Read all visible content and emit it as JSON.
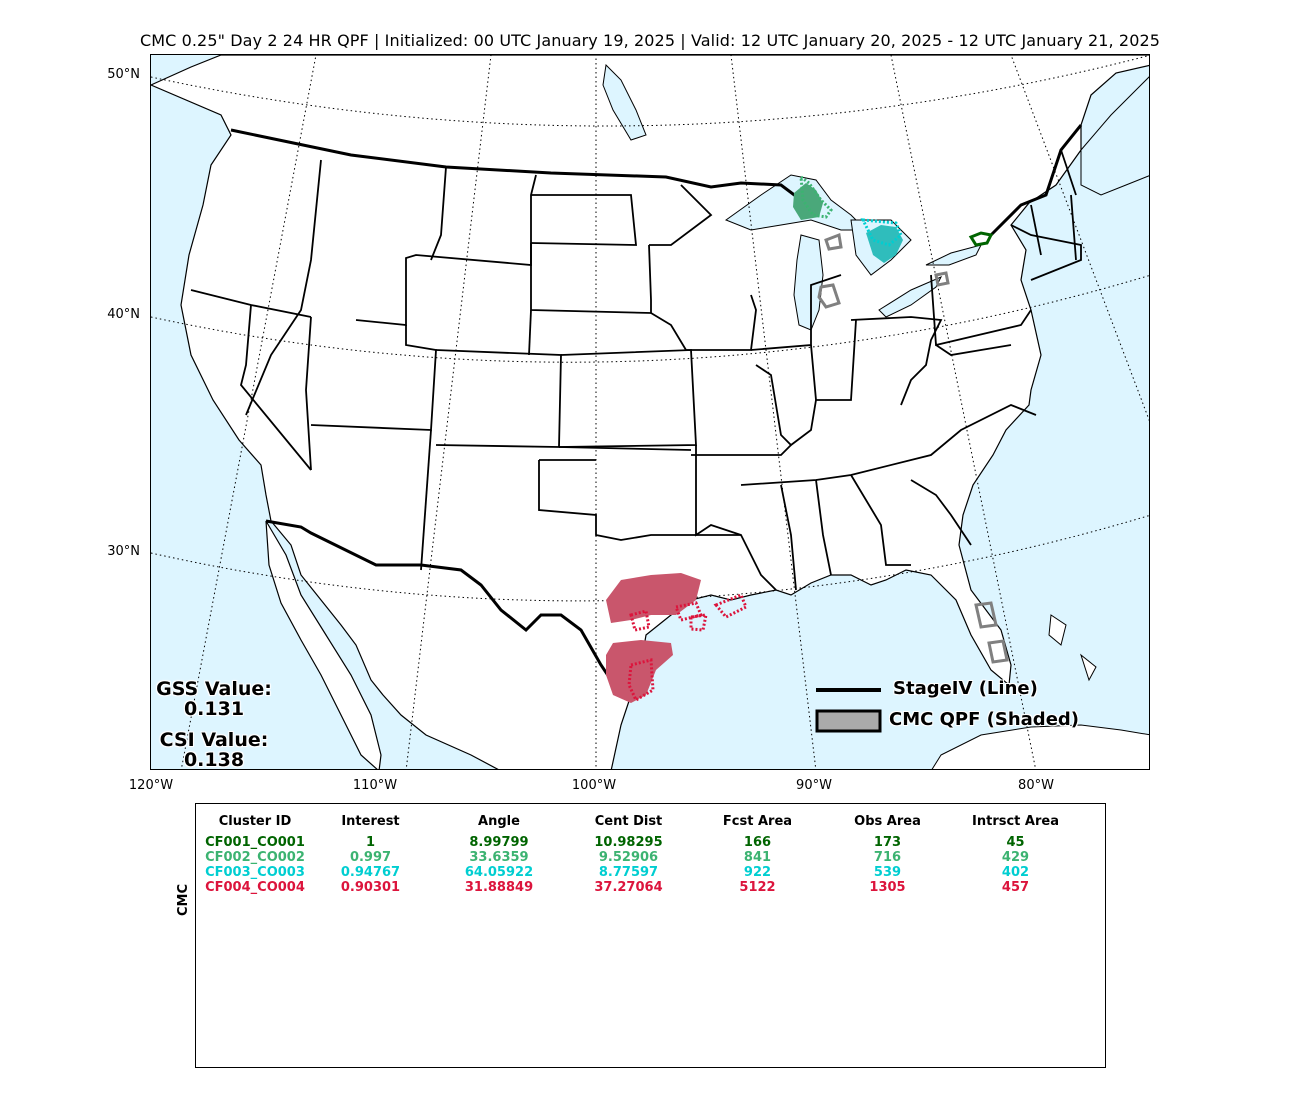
{
  "title": "CMC 0.25\" Day 2 24 HR QPF | Initialized: 00 UTC January 19, 2025 | Valid: 12 UTC January 20, 2025 - 12 UTC January 21, 2025",
  "map": {
    "lat_labels": [
      "50°N",
      "40°N",
      "30°N"
    ],
    "lon_labels": [
      "120°W",
      "110°W",
      "100°W",
      "90°W",
      "80°W"
    ],
    "colors": {
      "ocean": "#ddf5ff",
      "land": "#ffffff",
      "obs_outline": "#808080"
    }
  },
  "scores": {
    "gss_label": "GSS Value:",
    "gss_value": "0.131",
    "csi_label": "CSI Value:",
    "csi_value": "0.138"
  },
  "legend": {
    "line_label": "StageIV (Line)",
    "shaded_label": "CMC QPF (Shaded)"
  },
  "table": {
    "ylabel": "CMC",
    "headers": [
      "Cluster ID",
      "Interest",
      "Angle",
      "Cent Dist",
      "Fcst Area",
      "Obs Area",
      "Intrsct Area"
    ],
    "rows": [
      {
        "color": "#006400",
        "cells": [
          "CF001_CO001",
          "1",
          "8.99799",
          "10.98295",
          "166",
          "173",
          "45"
        ]
      },
      {
        "color": "#3cb371",
        "cells": [
          "CF002_CO002",
          "0.997",
          "33.6359",
          "9.52906",
          "841",
          "716",
          "429"
        ]
      },
      {
        "color": "#00ced1",
        "cells": [
          "CF003_CO003",
          "0.94767",
          "64.05922",
          "8.77597",
          "922",
          "539",
          "402"
        ]
      },
      {
        "color": "#dc143c",
        "cells": [
          "CF004_CO004",
          "0.90301",
          "31.88849",
          "37.27064",
          "5122",
          "1305",
          "457"
        ]
      }
    ]
  }
}
